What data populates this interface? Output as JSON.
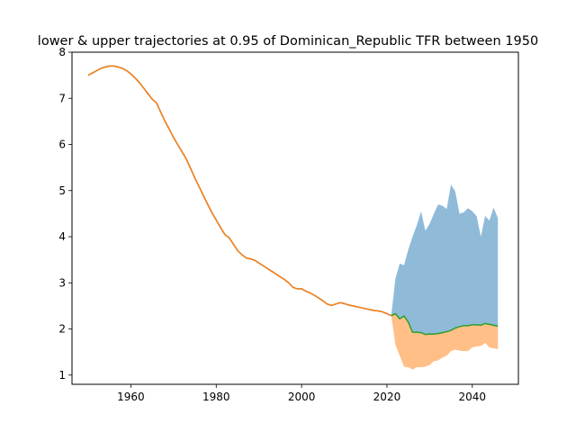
{
  "chart_data": {
    "type": "line",
    "title": "lower & upper trajectories at 0.95 of Dominican_Republic TFR between 1950",
    "xlabel": "",
    "ylabel": "",
    "xlim": [
      1946.2,
      2050.8
    ],
    "ylim": [
      0.8,
      8.0
    ],
    "x_ticks": [
      1960,
      1980,
      2000,
      2020,
      2040
    ],
    "y_ticks": [
      1,
      2,
      3,
      4,
      5,
      6,
      7,
      8
    ],
    "grid": false,
    "legend": "none",
    "colors": {
      "historical": "#ff7f0e",
      "historical_overlay": "#1f77b4",
      "median": "#2ca02c",
      "upper_band": "#1f77b4",
      "lower_band": "#ff7f0e"
    },
    "series": [
      {
        "role": "historical",
        "x": [
          1950,
          1951,
          1952,
          1953,
          1954,
          1955,
          1956,
          1957,
          1958,
          1959,
          1960,
          1961,
          1962,
          1963,
          1964,
          1965,
          1966,
          1967,
          1968,
          1969,
          1970,
          1971,
          1972,
          1973,
          1974,
          1975,
          1976,
          1977,
          1978,
          1979,
          1980,
          1981,
          1982,
          1983,
          1984,
          1985,
          1986,
          1987,
          1988,
          1989,
          1990,
          1991,
          1992,
          1993,
          1994,
          1995,
          1996,
          1997,
          1998,
          1999,
          2000,
          2001,
          2002,
          2003,
          2004,
          2005,
          2006,
          2007,
          2008,
          2009,
          2010,
          2011,
          2012,
          2013,
          2014,
          2015,
          2016,
          2017,
          2018,
          2019,
          2020,
          2021
        ],
        "values": [
          7.5,
          7.55,
          7.6,
          7.65,
          7.68,
          7.7,
          7.7,
          7.68,
          7.65,
          7.6,
          7.53,
          7.44,
          7.34,
          7.22,
          7.1,
          6.98,
          6.9,
          6.7,
          6.5,
          6.33,
          6.15,
          5.99,
          5.84,
          5.68,
          5.48,
          5.27,
          5.08,
          4.89,
          4.7,
          4.52,
          4.36,
          4.2,
          4.05,
          3.98,
          3.84,
          3.7,
          3.61,
          3.54,
          3.52,
          3.49,
          3.43,
          3.37,
          3.31,
          3.25,
          3.19,
          3.13,
          3.07,
          3.0,
          2.9,
          2.87,
          2.87,
          2.82,
          2.78,
          2.73,
          2.67,
          2.61,
          2.54,
          2.51,
          2.54,
          2.57,
          2.55,
          2.52,
          2.5,
          2.48,
          2.46,
          2.44,
          2.42,
          2.4,
          2.39,
          2.37,
          2.33,
          2.29
        ]
      },
      {
        "role": "median",
        "x": [
          2021,
          2022,
          2023,
          2024,
          2025,
          2026,
          2027,
          2028,
          2029,
          2030,
          2031,
          2032,
          2033,
          2034,
          2035,
          2036,
          2037,
          2038,
          2039,
          2040,
          2041,
          2042,
          2043,
          2044,
          2045,
          2046
        ],
        "values": [
          2.29,
          2.33,
          2.22,
          2.28,
          2.15,
          1.93,
          1.93,
          1.92,
          1.88,
          1.89,
          1.89,
          1.9,
          1.92,
          1.94,
          1.97,
          2.02,
          2.05,
          2.07,
          2.07,
          2.09,
          2.09,
          2.08,
          2.12,
          2.1,
          2.08,
          2.06
        ]
      },
      {
        "role": "upper",
        "x": [
          2021,
          2022,
          2023,
          2024,
          2025,
          2026,
          2027,
          2028,
          2029,
          2030,
          2031,
          2032,
          2033,
          2034,
          2035,
          2036,
          2037,
          2038,
          2039,
          2040,
          2041,
          2042,
          2043,
          2044,
          2045,
          2046
        ],
        "values": [
          2.29,
          3.1,
          3.42,
          3.38,
          3.72,
          4.0,
          4.25,
          4.55,
          4.13,
          4.28,
          4.5,
          4.7,
          4.67,
          4.6,
          5.13,
          4.98,
          4.5,
          4.53,
          4.62,
          4.55,
          4.45,
          4.0,
          4.45,
          4.35,
          4.63,
          4.4
        ]
      },
      {
        "role": "lower",
        "x": [
          2021,
          2022,
          2023,
          2024,
          2025,
          2026,
          2027,
          2028,
          2029,
          2030,
          2031,
          2032,
          2033,
          2034,
          2035,
          2036,
          2037,
          2038,
          2039,
          2040,
          2041,
          2042,
          2043,
          2044,
          2045,
          2046
        ],
        "values": [
          2.29,
          1.65,
          1.42,
          1.18,
          1.17,
          1.12,
          1.17,
          1.17,
          1.18,
          1.22,
          1.3,
          1.32,
          1.38,
          1.42,
          1.52,
          1.55,
          1.53,
          1.52,
          1.52,
          1.6,
          1.62,
          1.63,
          1.7,
          1.6,
          1.58,
          1.56
        ]
      }
    ]
  }
}
